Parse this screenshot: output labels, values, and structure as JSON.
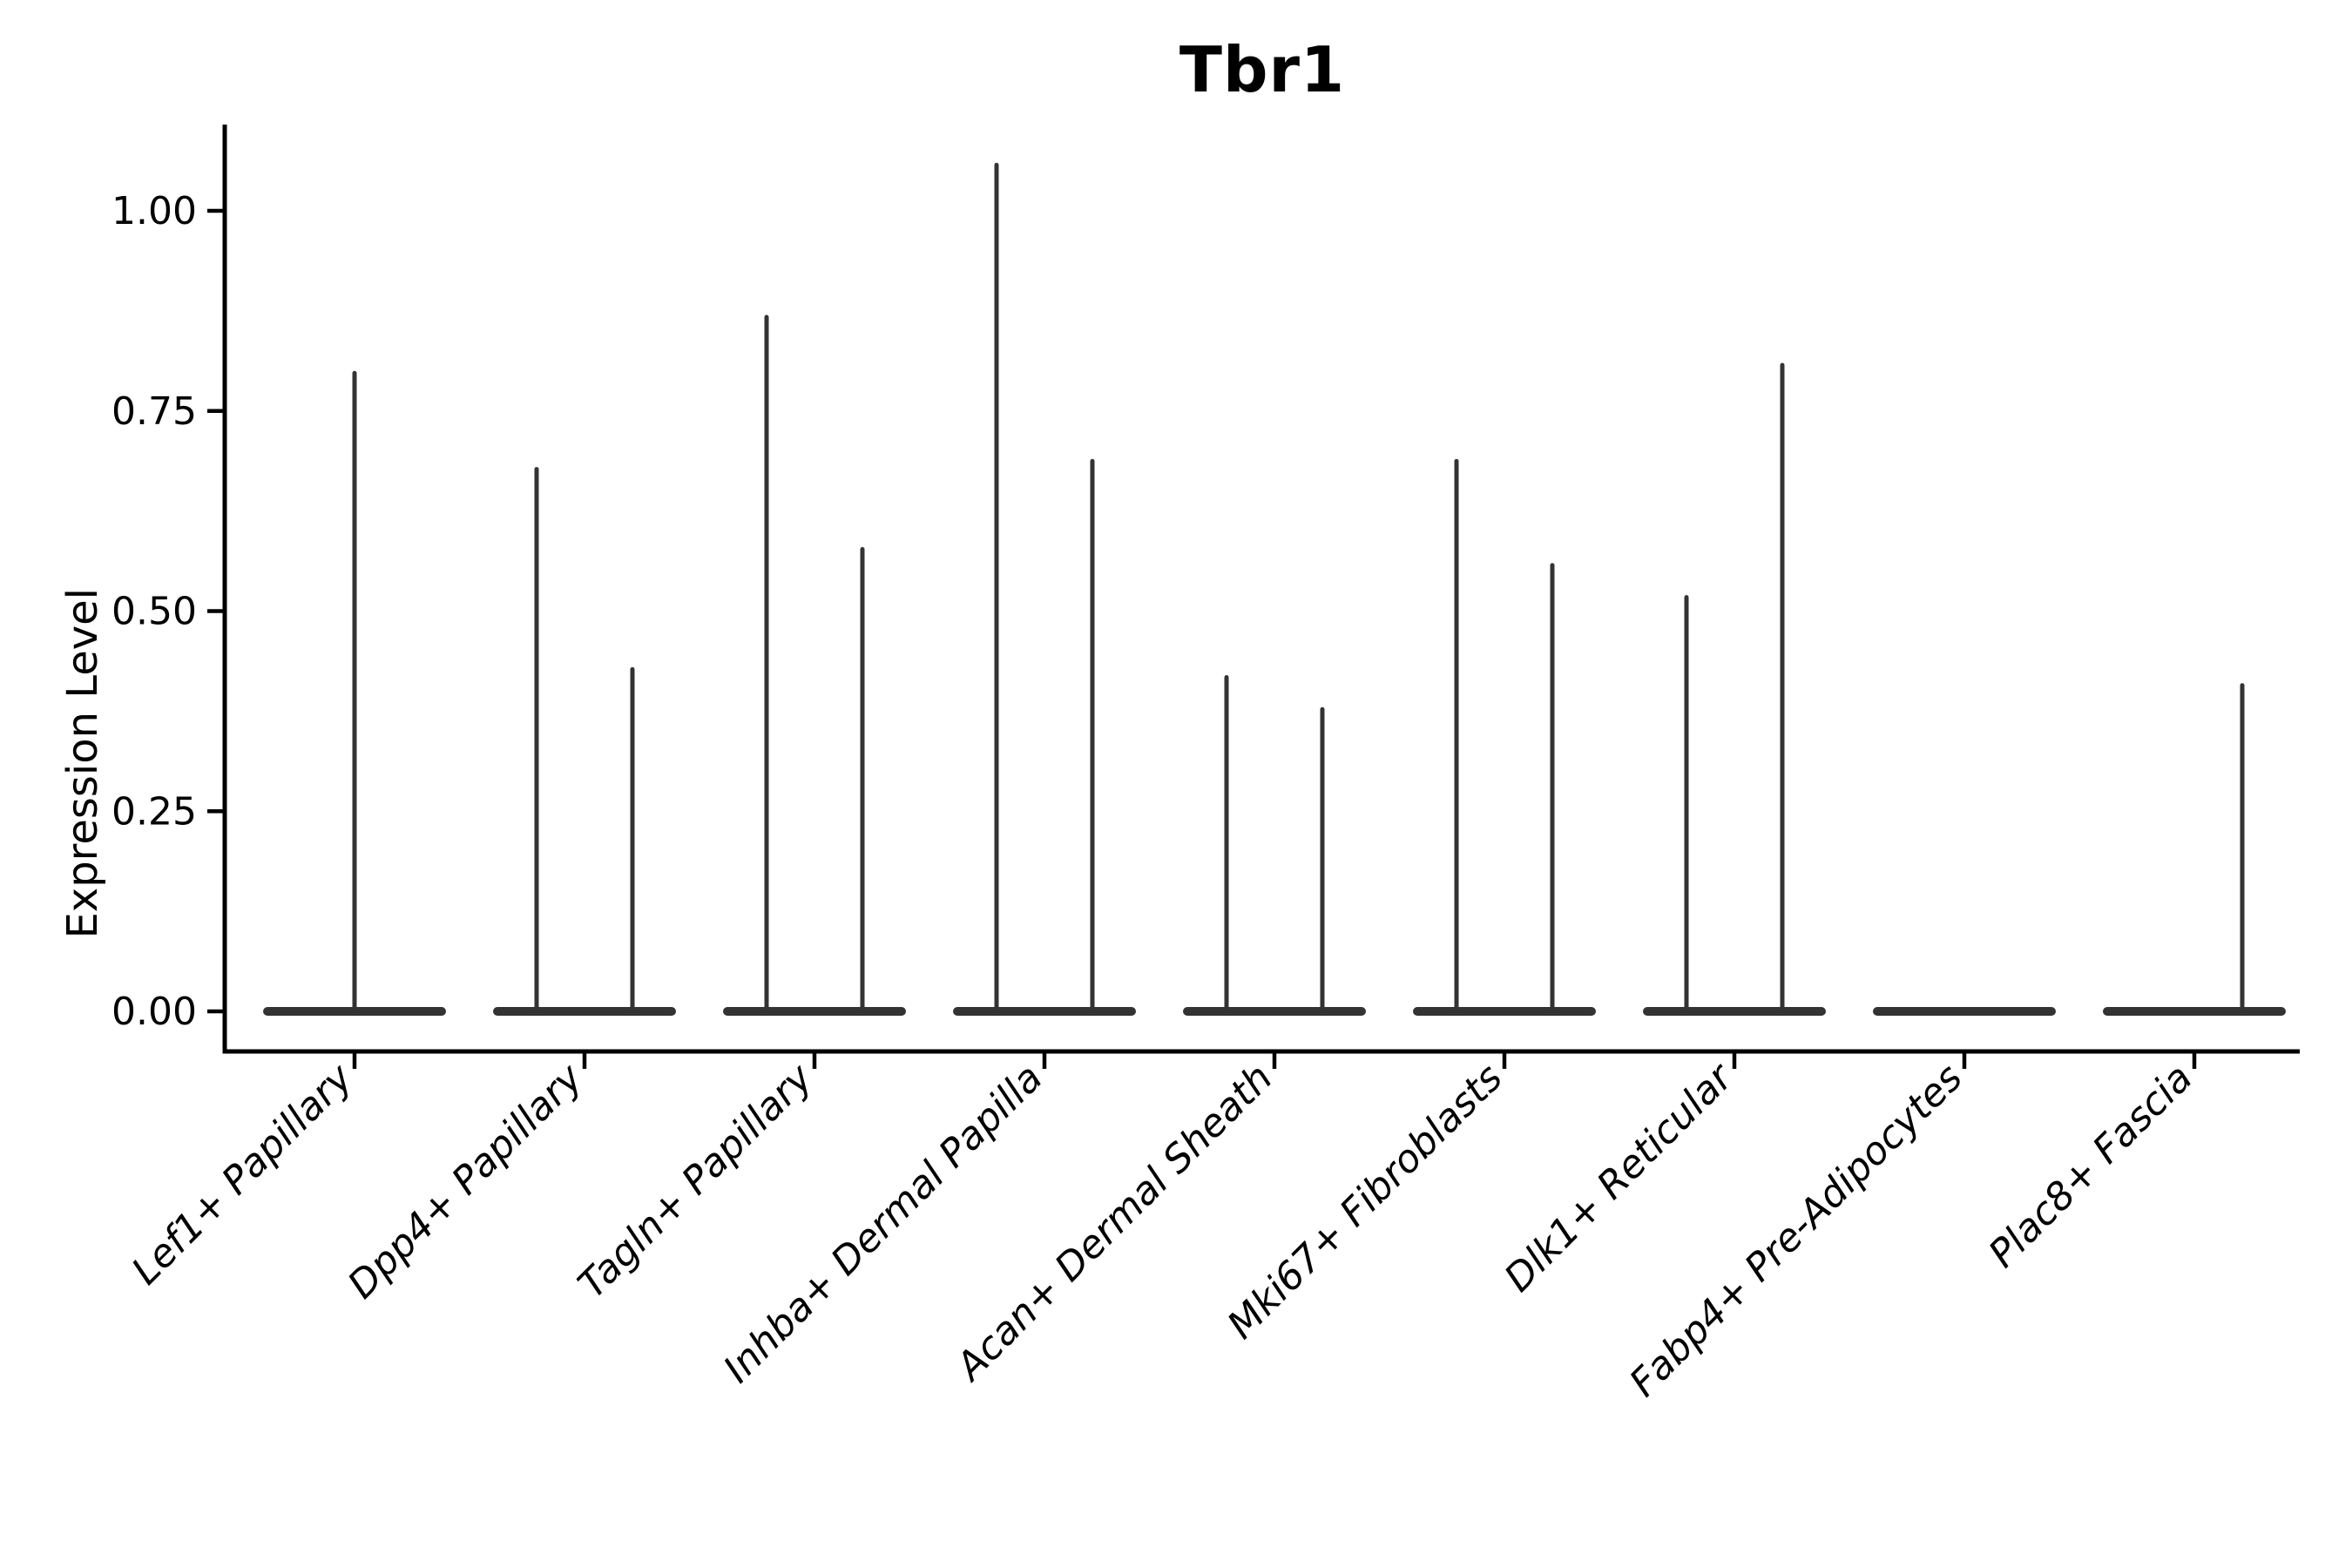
{
  "title": "Tbr1",
  "y_axis": {
    "label": "Expression Level",
    "tick_labels": [
      "0.00",
      "0.25",
      "0.50",
      "0.75",
      "1.00"
    ]
  },
  "chart_data": {
    "type": "violin",
    "title": "Tbr1",
    "xlabel": "",
    "ylabel": "Expression Level",
    "ylim": [
      0,
      1.11
    ],
    "yticks": [
      0.0,
      0.25,
      0.5,
      0.75,
      1.0
    ],
    "ytick_labels": [
      "0.00",
      "0.25",
      "0.50",
      "0.75",
      "1.00"
    ],
    "grid": false,
    "legend": "none",
    "x_tick_label_rotation": 45,
    "categories": [
      "Lef1+ Papillary",
      "Dpp4+ Papillary",
      "Tagln+ Papillary",
      "Inhba+ Dermal Papilla",
      "Acan+ Dermal Sheath",
      "Mki67+ Fibroblasts",
      "Dlk1+ Reticular",
      "Fabp4+ Pre-Adipocytes",
      "Plac8+ Fascia"
    ],
    "baseline_value": 0.0,
    "violins": [
      {
        "category": "Lef1+ Papillary",
        "spikes": [
          {
            "pos": "center",
            "value": 0.8
          }
        ]
      },
      {
        "category": "Dpp4+ Papillary",
        "spikes": [
          {
            "pos": "left",
            "value": 0.68
          },
          {
            "pos": "right",
            "value": 0.43
          }
        ]
      },
      {
        "category": "Tagln+ Papillary",
        "spikes": [
          {
            "pos": "left",
            "value": 0.87
          },
          {
            "pos": "right",
            "value": 0.58
          }
        ]
      },
      {
        "category": "Inhba+ Dermal Papilla",
        "spikes": [
          {
            "pos": "left",
            "value": 1.06
          },
          {
            "pos": "right",
            "value": 0.69
          }
        ]
      },
      {
        "category": "Acan+ Dermal Sheath",
        "spikes": [
          {
            "pos": "left",
            "value": 0.42
          },
          {
            "pos": "right",
            "value": 0.38
          }
        ]
      },
      {
        "category": "Mki67+ Fibroblasts",
        "spikes": [
          {
            "pos": "left",
            "value": 0.69
          },
          {
            "pos": "right",
            "value": 0.56
          }
        ]
      },
      {
        "category": "Dlk1+ Reticular",
        "spikes": [
          {
            "pos": "left",
            "value": 0.52
          },
          {
            "pos": "right",
            "value": 0.81
          }
        ]
      },
      {
        "category": "Fabp4+ Pre-Adipocytes",
        "spikes": []
      },
      {
        "category": "Plac8+ Fascia",
        "spikes": [
          {
            "pos": "right",
            "value": 0.41
          }
        ]
      }
    ],
    "colors": {
      "violin": "#333333",
      "axis": "#000000",
      "text": "#000000",
      "background": "#ffffff"
    },
    "note": "Seurat-style single-gene violin plot: expression is 0 for nearly all cells, producing flat violin bodies at 0 with thin spikes rising to the maximum expression values."
  }
}
